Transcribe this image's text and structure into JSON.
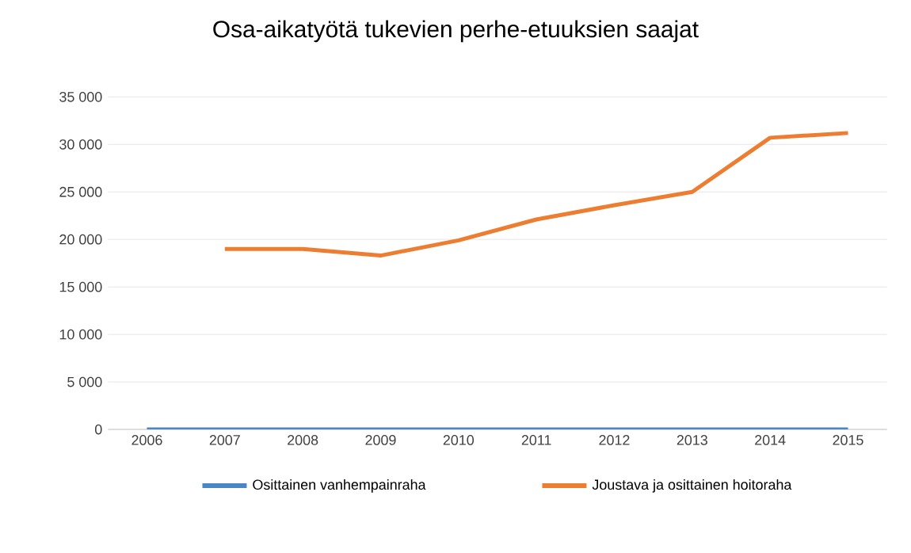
{
  "chart_data": {
    "type": "line",
    "title": "Osa-aikatyötä tukevien perhe-etuuksien saajat",
    "categories": [
      "2006",
      "2007",
      "2008",
      "2009",
      "2010",
      "2011",
      "2012",
      "2013",
      "2014",
      "2015"
    ],
    "series": [
      {
        "name": "Osittainen vanhempainraha",
        "color": "#4a86c5",
        "values": [
          0,
          0,
          0,
          0,
          0,
          0,
          0,
          0,
          0,
          0
        ]
      },
      {
        "name": "Joustava ja osittainen hoitoraha",
        "color": "#ed7d31",
        "values": [
          null,
          19000,
          19000,
          18300,
          19900,
          22100,
          23600,
          25000,
          30700,
          31200
        ]
      }
    ],
    "ylim": [
      0,
      35000
    ],
    "yticks": [
      {
        "value": 0,
        "label": "0"
      },
      {
        "value": 5000,
        "label": "5 000"
      },
      {
        "value": 10000,
        "label": "10 000"
      },
      {
        "value": 15000,
        "label": "15 000"
      },
      {
        "value": 20000,
        "label": "20 000"
      },
      {
        "value": 25000,
        "label": "25 000"
      },
      {
        "value": 30000,
        "label": "30 000"
      },
      {
        "value": 35000,
        "label": "35 000"
      }
    ],
    "grid": "y",
    "legend": "bottom",
    "marker": "none",
    "line_style": "solid"
  }
}
